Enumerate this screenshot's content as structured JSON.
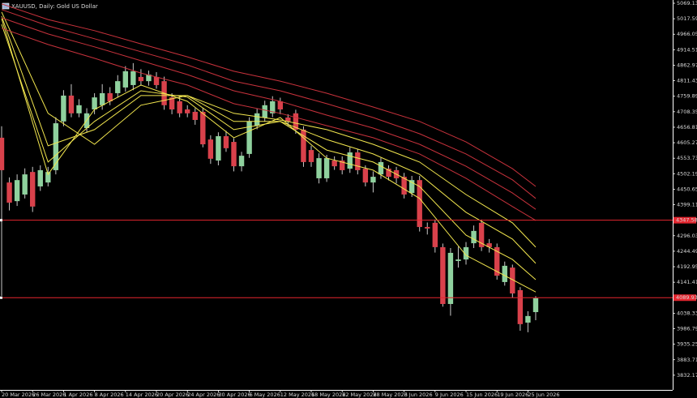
{
  "chart_data": {
    "type": "candlestick",
    "title": "XAUUSD, Daily:  Gold US Dollar",
    "up_color": "#8fd19e",
    "down_color": "#d9414b",
    "wick_color": "#c8c8c8",
    "x": [
      0,
      1,
      2,
      3,
      4,
      5,
      6,
      7,
      8,
      9,
      10,
      11,
      12,
      13,
      14,
      15,
      16,
      17,
      18,
      19,
      20,
      21,
      22,
      23,
      24,
      25,
      26,
      27,
      28,
      29,
      30,
      31,
      32,
      33,
      34,
      35,
      36,
      37,
      38,
      39,
      40,
      41,
      42,
      43,
      44,
      45,
      46,
      47,
      48,
      49,
      50,
      51,
      52,
      53,
      54,
      55,
      56,
      57,
      58,
      59,
      60,
      61,
      62,
      63,
      64,
      65,
      66,
      67,
      68,
      69
    ],
    "open": [
      4622,
      4473,
      4411,
      4433,
      4508,
      4460,
      4473,
      4514,
      4676,
      4762,
      4703,
      4654,
      4716,
      4730,
      4770,
      4770,
      4789,
      4797,
      4824,
      4810,
      4824,
      4810,
      4756,
      4743,
      4716,
      4708,
      4708,
      4616,
      4546,
      4627,
      4608,
      4527,
      4568,
      4662,
      4689,
      4703,
      4743,
      4689,
      4703,
      4649,
      4581,
      4487,
      4487,
      4546,
      4546,
      4519,
      4573,
      4519,
      4473,
      4500,
      4519,
      4514,
      4492,
      4438,
      4481,
      4325,
      4339,
      4258,
      4069,
      4212,
      4217,
      4271,
      4339,
      4271,
      4258,
      4142,
      4190,
      4115,
      4007,
      4042
    ],
    "high": [
      4660,
      4490,
      4500,
      4520,
      4525,
      4530,
      4525,
      4690,
      4780,
      4800,
      4750,
      4720,
      4770,
      4800,
      4790,
      4830,
      4860,
      4870,
      4850,
      4845,
      4840,
      4825,
      4770,
      4760,
      4730,
      4720,
      4720,
      4630,
      4640,
      4645,
      4620,
      4575,
      4690,
      4720,
      4745,
      4760,
      4755,
      4700,
      4715,
      4660,
      4595,
      4570,
      4565,
      4560,
      4560,
      4590,
      4585,
      4530,
      4510,
      4555,
      4530,
      4525,
      4505,
      4495,
      4495,
      4340,
      4350,
      4270,
      4255,
      4260,
      4275,
      4330,
      4350,
      4285,
      4270,
      4210,
      4200,
      4125,
      4045,
      4095
    ],
    "low": [
      4096,
      4380,
      4395,
      4420,
      4375,
      4445,
      4460,
      4500,
      4660,
      4690,
      4690,
      4640,
      4700,
      4715,
      4730,
      4755,
      4775,
      4780,
      4795,
      4795,
      4785,
      4715,
      4700,
      4690,
      4690,
      4665,
      4590,
      4535,
      4530,
      4575,
      4510,
      4510,
      4555,
      4650,
      4675,
      4690,
      4700,
      4660,
      4635,
      4525,
      4525,
      4470,
      4475,
      4515,
      4500,
      4505,
      4500,
      4460,
      4440,
      4485,
      4480,
      4470,
      4420,
      4425,
      4310,
      4300,
      4240,
      4060,
      4030,
      4190,
      4200,
      4255,
      4245,
      4240,
      4150,
      4130,
      4090,
      3980,
      3975,
      4015
    ],
    "close": [
      4514,
      4406,
      4481,
      4500,
      4393,
      4514,
      4508,
      4670,
      4762,
      4703,
      4730,
      4703,
      4756,
      4770,
      4743,
      4810,
      4843,
      4843,
      4810,
      4832,
      4797,
      4730,
      4716,
      4703,
      4703,
      4681,
      4600,
      4552,
      4627,
      4587,
      4527,
      4562,
      4676,
      4703,
      4730,
      4743,
      4716,
      4676,
      4649,
      4541,
      4541,
      4554,
      4554,
      4527,
      4514,
      4573,
      4514,
      4473,
      4492,
      4541,
      4492,
      4487,
      4433,
      4481,
      4325,
      4320,
      4258,
      4069,
      4239,
      4217,
      4258,
      4312,
      4258,
      4258,
      4163,
      4196,
      4104,
      4002,
      4029,
      4088
    ],
    "moving_averages": [
      {
        "color": "#f2e64e",
        "x": [
          0,
          6,
          12,
          18,
          24,
          30,
          36,
          42,
          48,
          54,
          60,
          66,
          69
        ],
        "values": [
          5018,
          4500,
          4716,
          4797,
          4743,
          4622,
          4689,
          4554,
          4514,
          4420,
          4231,
          4150,
          4109
        ]
      },
      {
        "color": "#f2e64e",
        "x": [
          0,
          6,
          12,
          18,
          24,
          30,
          36,
          42,
          48,
          54,
          60,
          66,
          69
        ],
        "values": [
          4999,
          4541,
          4676,
          4778,
          4757,
          4649,
          4676,
          4581,
          4541,
          4460,
          4298,
          4217,
          4150
        ]
      },
      {
        "color": "#f2e64e",
        "x": [
          0,
          6,
          12,
          18,
          24,
          30,
          36,
          42,
          48,
          54,
          60,
          66,
          69
        ],
        "values": [
          5026,
          4595,
          4649,
          4762,
          4762,
          4676,
          4676,
          4616,
          4568,
          4500,
          4374,
          4285,
          4204
        ]
      },
      {
        "color": "#f2e64e",
        "x": [
          0,
          6,
          12,
          18,
          24,
          30,
          36,
          42,
          48,
          54,
          60,
          66,
          69
        ],
        "values": [
          5040,
          4703,
          4600,
          4730,
          4762,
          4703,
          4681,
          4649,
          4600,
          4541,
          4433,
          4339,
          4258
        ]
      },
      {
        "color": "#c8323c",
        "x": [
          0,
          6,
          12,
          18,
          24,
          30,
          36,
          42,
          48,
          54,
          60,
          66,
          69
        ],
        "values": [
          4986,
          4932,
          4886,
          4837,
          4797,
          4735,
          4703,
          4662,
          4622,
          4568,
          4487,
          4393,
          4347
        ]
      },
      {
        "color": "#c8323c",
        "x": [
          0,
          6,
          12,
          18,
          24,
          30,
          36,
          42,
          48,
          54,
          60,
          66,
          69
        ],
        "values": [
          5021,
          4967,
          4924,
          4878,
          4832,
          4778,
          4743,
          4697,
          4654,
          4600,
          4527,
          4438,
          4384
        ]
      },
      {
        "color": "#c8323c",
        "x": [
          0,
          6,
          12,
          18,
          24,
          30,
          36,
          42,
          48,
          54,
          60,
          66,
          69
        ],
        "values": [
          5048,
          4994,
          4951,
          4908,
          4864,
          4810,
          4778,
          4735,
          4689,
          4635,
          4568,
          4482,
          4420
        ]
      },
      {
        "color": "#c8323c",
        "x": [
          0,
          6,
          12,
          18,
          24,
          30,
          36,
          42,
          48,
          54,
          60,
          66,
          69
        ],
        "values": [
          5067,
          5015,
          4978,
          4934,
          4891,
          4843,
          4810,
          4770,
          4724,
          4676,
          4608,
          4519,
          4460
        ]
      }
    ],
    "hlines": [
      {
        "value": 4347.58,
        "label": "4347.58",
        "color": "#e5262f"
      },
      {
        "value": 4089.93,
        "label": "4089.93",
        "color": "#e5262f"
      }
    ],
    "xlim": [
      -0.21,
      86.7
    ],
    "ylim": [
      3783.3,
      5079.9
    ],
    "yticks": [
      5069.13,
      5017.59,
      4966.05,
      4914.51,
      4862.97,
      4811.43,
      4759.89,
      4708.35,
      4656.81,
      4605.27,
      4553.73,
      4502.19,
      4450.65,
      4399.11,
      4296.03,
      4244.49,
      4192.95,
      4141.41,
      4038.33,
      3986.79,
      3935.25,
      3883.71,
      3832.17
    ],
    "xticks": [
      {
        "value": 0,
        "label": "20 Mar 2026"
      },
      {
        "value": 4,
        "label": "26 Mar 2026"
      },
      {
        "value": 8,
        "label": "1 Apr 2026"
      },
      {
        "value": 12,
        "label": "8 Apr 2026"
      },
      {
        "value": 16,
        "label": "14 Apr 2026"
      },
      {
        "value": 20,
        "label": "20 Apr 2026"
      },
      {
        "value": 24,
        "label": "24 Apr 2026"
      },
      {
        "value": 28,
        "label": "30 Apr 2026"
      },
      {
        "value": 32,
        "label": "6 May 2026"
      },
      {
        "value": 36,
        "label": "12 May 2026"
      },
      {
        "value": 40,
        "label": "18 May 2026"
      },
      {
        "value": 44,
        "label": "22 May 2026"
      },
      {
        "value": 48,
        "label": "28 May 2026"
      },
      {
        "value": 52,
        "label": "3 Jun 2026"
      },
      {
        "value": 56,
        "label": "9 Jun 2026"
      },
      {
        "value": 60,
        "label": "15 Jun 2026"
      },
      {
        "value": 64,
        "label": "19 Jun 2026"
      },
      {
        "value": 68,
        "label": "25 Jun 2026"
      }
    ]
  }
}
